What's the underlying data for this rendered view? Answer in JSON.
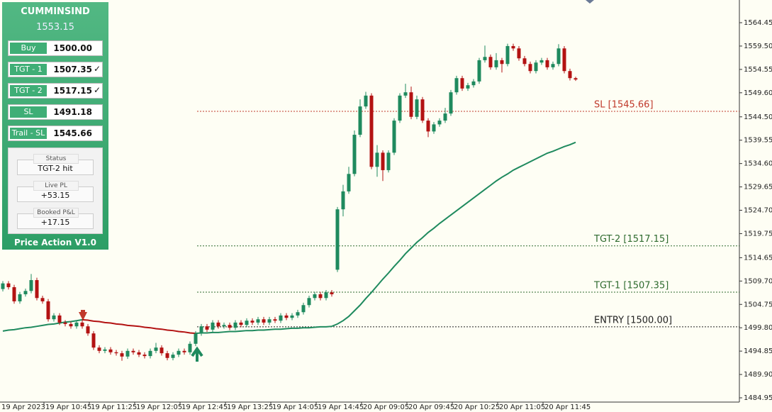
{
  "panel": {
    "symbol": "CUMMINSIND",
    "price": "1553.15",
    "rows": [
      {
        "label": "Buy",
        "value": "1500.00",
        "mark": ""
      },
      {
        "label": "TGT - 1",
        "value": "1507.35",
        "mark": "✓"
      },
      {
        "label": "TGT - 2",
        "value": "1517.15",
        "mark": "✓"
      },
      {
        "label": "SL",
        "value": "1491.18",
        "mark": ""
      },
      {
        "label": "Trail - SL",
        "value": "1545.66",
        "mark": ""
      }
    ],
    "fields": [
      {
        "label": "Status",
        "value": "TGT-2 hit"
      },
      {
        "label": "Live PL",
        "value": "+53.15"
      },
      {
        "label": "Booked P&L",
        "value": "+17.15"
      }
    ],
    "footer": "Price Action V1.0"
  },
  "chart_data": {
    "type": "candlestick",
    "up_color": "#1f8a5e",
    "down_color": "#b31212",
    "ylim": [
      1484.05,
      1569.26
    ],
    "yticks": [
      1564.45,
      {
        "value": 1559.5,
        "label": "1559.50"
      },
      1554.55,
      {
        "value": 1549.6,
        "label": "1549.60"
      },
      {
        "value": 1544.5,
        "label": "1544.50"
      },
      1539.55,
      {
        "value": 1534.6,
        "label": "1534.60"
      },
      1529.65,
      {
        "value": 1524.7,
        "label": "1524.70"
      },
      1519.75,
      1514.65,
      {
        "value": 1509.7,
        "label": "1509.70"
      },
      1504.75,
      {
        "value": 1499.8,
        "label": "1499.80"
      },
      1494.85,
      {
        "value": 1489.9,
        "label": "1489.90"
      },
      1484.95
    ],
    "categories": [
      "19 Apr 2023",
      null,
      null,
      null,
      null,
      null,
      null,
      null,
      "19 Apr 10:45",
      null,
      null,
      null,
      null,
      null,
      null,
      null,
      "19 Apr 11:25",
      null,
      null,
      null,
      null,
      null,
      null,
      null,
      "19 Apr 12:05",
      null,
      null,
      null,
      null,
      null,
      null,
      null,
      "19 Apr 12:45",
      null,
      null,
      null,
      null,
      null,
      null,
      null,
      "19 Apr 13:25",
      null,
      null,
      null,
      null,
      null,
      null,
      null,
      "19 Apr 14:05",
      null,
      null,
      null,
      null,
      null,
      null,
      null,
      "19 Apr 14:45",
      null,
      null,
      null,
      null,
      null,
      null,
      null,
      "20 Apr 09:05",
      null,
      null,
      null,
      null,
      null,
      null,
      null,
      "20 Apr 09:45",
      null,
      null,
      null,
      null,
      null,
      null,
      null,
      "20 Apr 10:25",
      null,
      null,
      null,
      null,
      null,
      null,
      null,
      "20 Apr 11:05",
      null,
      null,
      null,
      null,
      null,
      null,
      null,
      "20 Apr 11:45",
      null,
      null,
      null,
      null,
      null
    ],
    "open": [
      1508.0,
      1509.2,
      1508.4,
      1505.4,
      1506.9,
      1507.6,
      1509.9,
      1506.1,
      1505.4,
      1501.6,
      1502.4,
      1500.9,
      1500.6,
      1500.1,
      1500.9,
      1500.1,
      1498.6,
      1495.6,
      1494.9,
      1495.2,
      1494.6,
      1494.4,
      1493.7,
      1494.9,
      1494.6,
      1494.1,
      1493.8,
      1494.9,
      1495.6,
      1494.4,
      1493.4,
      1494.1,
      1494.9,
      1494.6,
      1496.4,
      1498.6,
      1500.1,
      1499.4,
      1500.9,
      1500.1,
      1500.4,
      1499.8,
      1500.9,
      1500.4,
      1501.3,
      1500.9,
      1501.6,
      1500.9,
      1501.6,
      1501.3,
      1502.4,
      1501.9,
      1502.4,
      1503.1,
      1504.6,
      1506.1,
      1506.9,
      1506.1,
      1507.3,
      1512.1,
      1524.9,
      1528.7,
      1532.4,
      1540.7,
      1546.7,
      1549.0,
      1533.9,
      1536.9,
      1533.2,
      1536.9,
      1543.7,
      1549.0,
      1549.7,
      1544.5,
      1548.2,
      1543.7,
      1541.4,
      1542.9,
      1543.7,
      1545.2,
      1549.7,
      1552.7,
      1550.5,
      1551.2,
      1552.0,
      1556.5,
      1557.2,
      1555.0,
      1556.5,
      1555.7,
      1559.5,
      1559.0,
      1556.9,
      1555.7,
      1554.2,
      1556.0,
      1556.5,
      1555.0,
      1555.7,
      1559.0,
      1554.2,
      1552.7
    ],
    "high": [
      1509.7,
      1509.7,
      1508.9,
      1507.4,
      1508.1,
      1511.2,
      1510.4,
      1506.6,
      1505.9,
      1502.9,
      1502.9,
      1501.4,
      1501.1,
      1501.4,
      1501.4,
      1500.6,
      1499.1,
      1496.1,
      1495.7,
      1495.7,
      1495.1,
      1494.9,
      1495.4,
      1495.4,
      1495.1,
      1494.6,
      1495.4,
      1496.6,
      1496.1,
      1494.9,
      1494.6,
      1495.4,
      1495.4,
      1496.9,
      1499.1,
      1500.6,
      1500.6,
      1501.4,
      1501.4,
      1500.9,
      1500.9,
      1501.4,
      1501.4,
      1501.8,
      1501.8,
      1502.1,
      1502.1,
      1502.1,
      1502.1,
      1502.9,
      1502.9,
      1502.9,
      1503.6,
      1505.1,
      1506.6,
      1507.4,
      1507.4,
      1507.8,
      1507.8,
      1525.4,
      1530.1,
      1533.9,
      1541.6,
      1548.2,
      1549.8,
      1549.5,
      1538.5,
      1537.4,
      1537.4,
      1544.2,
      1549.5,
      1551.5,
      1550.9,
      1549.0,
      1548.7,
      1544.2,
      1543.4,
      1544.2,
      1546.4,
      1550.2,
      1553.2,
      1553.2,
      1551.7,
      1552.5,
      1557.0,
      1559.6,
      1557.7,
      1558.0,
      1557.0,
      1560.0,
      1560.0,
      1559.5,
      1557.4,
      1556.2,
      1556.5,
      1557.0,
      1557.0,
      1556.2,
      1559.9,
      1559.5,
      1554.7,
      1553.0
    ],
    "low": [
      1507.5,
      1507.9,
      1504.9,
      1504.9,
      1506.4,
      1507.1,
      1505.6,
      1504.9,
      1501.1,
      1501.1,
      1500.4,
      1500.1,
      1499.6,
      1499.6,
      1499.6,
      1498.1,
      1495.1,
      1494.4,
      1494.4,
      1494.1,
      1493.9,
      1492.8,
      1493.2,
      1494.1,
      1493.6,
      1493.3,
      1493.3,
      1494.4,
      1493.9,
      1492.9,
      1492.9,
      1493.6,
      1494.1,
      1494.1,
      1495.9,
      1498.1,
      1498.9,
      1498.9,
      1499.6,
      1499.6,
      1499.3,
      1499.3,
      1499.9,
      1499.9,
      1500.4,
      1500.4,
      1500.4,
      1500.4,
      1500.8,
      1500.8,
      1501.4,
      1501.4,
      1501.9,
      1502.6,
      1504.1,
      1505.6,
      1505.6,
      1505.6,
      1506.4,
      1511.6,
      1523.4,
      1528.2,
      1531.9,
      1540.2,
      1546.2,
      1533.4,
      1531.8,
      1530.9,
      1532.7,
      1536.4,
      1543.2,
      1548.5,
      1544.0,
      1544.0,
      1543.2,
      1540.2,
      1540.9,
      1542.4,
      1543.2,
      1544.7,
      1549.2,
      1550.0,
      1550.0,
      1550.7,
      1551.5,
      1556.0,
      1554.5,
      1554.5,
      1553.9,
      1555.2,
      1558.5,
      1556.4,
      1555.2,
      1553.7,
      1553.7,
      1555.5,
      1554.5,
      1554.5,
      1555.2,
      1553.7,
      1552.2,
      1552.1
    ],
    "close": [
      1509.2,
      1508.4,
      1505.4,
      1506.9,
      1507.6,
      1509.9,
      1506.1,
      1505.4,
      1501.6,
      1502.4,
      1500.9,
      1500.6,
      1500.1,
      1500.9,
      1500.1,
      1498.6,
      1495.6,
      1494.9,
      1495.2,
      1494.6,
      1494.4,
      1493.7,
      1494.9,
      1494.6,
      1494.1,
      1493.8,
      1494.9,
      1495.6,
      1494.4,
      1493.4,
      1494.1,
      1494.9,
      1494.6,
      1496.4,
      1498.6,
      1500.1,
      1499.4,
      1500.9,
      1500.1,
      1500.4,
      1499.8,
      1500.9,
      1500.4,
      1501.3,
      1500.9,
      1501.6,
      1500.9,
      1501.6,
      1501.3,
      1502.4,
      1501.9,
      1502.4,
      1503.1,
      1504.6,
      1506.1,
      1506.9,
      1506.1,
      1507.3,
      1506.9,
      1524.9,
      1528.7,
      1532.4,
      1540.7,
      1546.7,
      1549.0,
      1533.9,
      1536.9,
      1533.2,
      1536.9,
      1543.7,
      1549.0,
      1549.7,
      1544.5,
      1548.2,
      1543.7,
      1541.4,
      1542.9,
      1543.7,
      1545.2,
      1549.7,
      1552.7,
      1550.5,
      1551.2,
      1552.0,
      1556.5,
      1557.2,
      1555.0,
      1556.5,
      1555.7,
      1559.5,
      1559.0,
      1556.9,
      1555.7,
      1554.2,
      1556.0,
      1556.5,
      1555.0,
      1555.7,
      1559.0,
      1554.2,
      1552.7,
      1552.4
    ],
    "lines": [
      {
        "color": "#1f8a5e",
        "values": [
          1499.1,
          1499.3,
          1499.4,
          1499.6,
          1499.8,
          1499.9,
          1500.1,
          1500.3,
          1500.5,
          1500.6,
          1500.8,
          1501.0,
          1501.1,
          1501.3,
          1501.5,
          null,
          null,
          null,
          null,
          null,
          null,
          null,
          null,
          null,
          null,
          null,
          null,
          null,
          null,
          null,
          null,
          null,
          null,
          null,
          1498.6,
          1498.7,
          1498.7,
          1498.8,
          1498.8,
          1498.9,
          1499.0,
          1499.0,
          1499.1,
          1499.2,
          1499.2,
          1499.3,
          1499.3,
          1499.4,
          1499.5,
          1499.5,
          1499.6,
          1499.7,
          1499.7,
          1499.8,
          1499.8,
          1499.9,
          1500.0,
          1500.0,
          1500.1,
          1500.6,
          1501.3,
          1502.2,
          1503.4,
          1504.6,
          1506.0,
          1507.3,
          1508.7,
          1510.1,
          1511.4,
          1512.8,
          1514.1,
          1515.5,
          1516.7,
          1517.9,
          1518.9,
          1520.0,
          1520.9,
          1521.9,
          1522.8,
          1523.7,
          1524.6,
          1525.5,
          1526.4,
          1527.3,
          1528.2,
          1529.1,
          1530.0,
          1530.9,
          1531.7,
          1532.4,
          1533.2,
          1533.8,
          1534.4,
          1535.0,
          1535.6,
          1536.2,
          1536.8,
          1537.2,
          1537.7,
          1538.2,
          1538.6,
          1539.1
        ]
      },
      {
        "color": "#b31212",
        "values": [
          null,
          null,
          null,
          null,
          null,
          null,
          null,
          null,
          null,
          null,
          null,
          null,
          null,
          null,
          1501.5,
          1501.4,
          1501.2,
          1501.1,
          1500.9,
          1500.8,
          1500.6,
          1500.5,
          1500.3,
          1500.2,
          1500.1,
          1499.9,
          1499.8,
          1499.6,
          1499.5,
          1499.3,
          1499.2,
          1499.0,
          1498.9,
          1498.7,
          1498.6,
          null,
          null,
          null,
          null,
          null,
          null,
          null,
          null,
          null,
          null,
          null,
          null,
          null,
          null,
          null,
          null,
          null,
          null,
          null,
          null,
          null,
          null,
          null,
          null,
          null,
          null,
          null,
          null,
          null,
          null,
          null,
          null,
          null,
          null,
          null,
          null,
          null,
          null,
          null,
          null,
          null,
          null,
          null,
          null,
          null,
          null,
          null,
          null,
          null,
          null,
          null,
          null,
          null,
          null,
          null,
          null,
          null,
          null,
          null,
          null,
          null,
          null,
          null,
          null,
          null,
          null,
          null
        ]
      }
    ],
    "levels": [
      {
        "label": "SL [1545.66]",
        "value": 1545.66,
        "color": "#c0392b"
      },
      {
        "label": "TGT-2 [1517.15]",
        "value": 1517.15,
        "color": "#2f6b2f"
      },
      {
        "label": "TGT-1 [1507.35]",
        "value": 1507.35,
        "color": "#2f6b2f"
      },
      {
        "label": "ENTRY [1500.00]",
        "value": 1500.0,
        "color": "#222222"
      }
    ]
  }
}
